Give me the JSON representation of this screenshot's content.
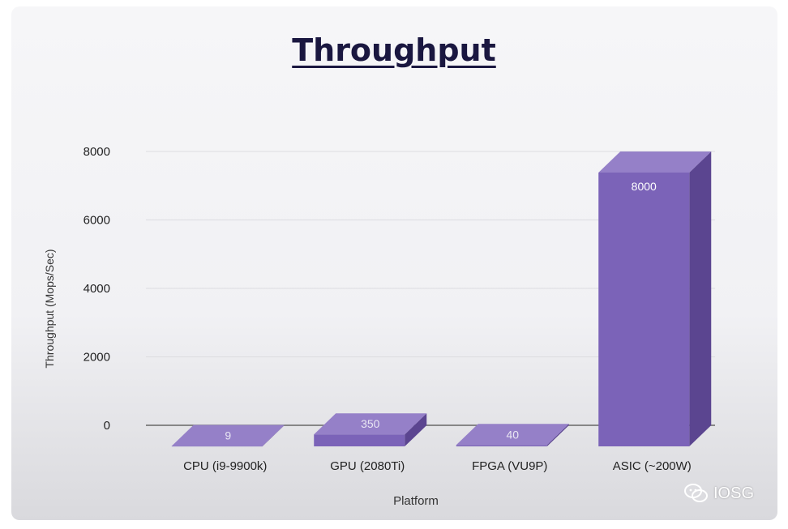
{
  "chart_data": {
    "type": "bar",
    "title": "Throughput",
    "xlabel": "Platform",
    "ylabel": "Throughput (Mops/Sec)",
    "categories": [
      "CPU (i9-9900k)",
      "GPU (2080Ti)",
      "FPGA (VU9P)",
      "ASIC (~200W)"
    ],
    "values": [
      9,
      350,
      40,
      8000
    ],
    "ylim": [
      0,
      8000
    ],
    "yticks": [
      0,
      2000,
      4000,
      6000,
      8000
    ],
    "data_labels": [
      "9",
      "350",
      "40",
      "8000"
    ],
    "grid": true,
    "bar_style": "3d",
    "colors": {
      "bar_front": "#7b63b8",
      "bar_top": "#9580c8",
      "bar_side": "#5b4590",
      "grid": "#dcdce0",
      "axis": "#666666"
    }
  },
  "watermark": {
    "text": "IOSG",
    "icon": "wechat-icon"
  }
}
